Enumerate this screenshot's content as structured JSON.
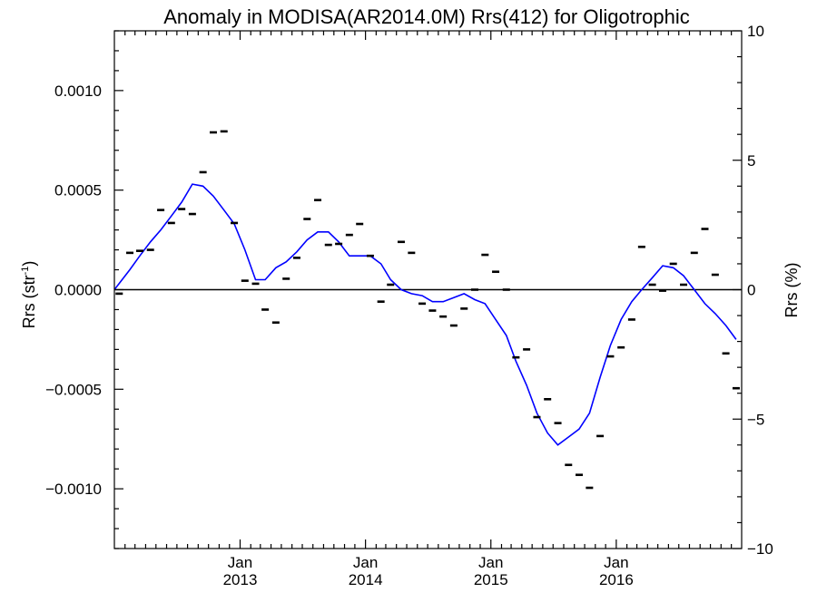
{
  "chart_data": {
    "type": "line",
    "title": "Anomaly in MODISA(AR2014.0M) Rrs(412) for Oligotrophic",
    "ylabel_left": "Rrs (str",
    "ylabel_left_sup": "-1",
    "ylabel_left_close": ")",
    "ylabel_right": "Rrs (%)",
    "xlim": [
      "2012-01-01",
      "2016-12-31"
    ],
    "ylim_left": [
      -0.0013,
      0.0013
    ],
    "ylim_right": [
      -10,
      10
    ],
    "x_ticks": [
      {
        "date": "2013-01-01",
        "label": "Jan",
        "year": "2013"
      },
      {
        "date": "2014-01-01",
        "label": "Jan",
        "year": "2014"
      },
      {
        "date": "2015-01-01",
        "label": "Jan",
        "year": "2015"
      },
      {
        "date": "2016-01-01",
        "label": "Jan",
        "year": "2016"
      }
    ],
    "y_ticks_left": [
      {
        "value": 0.001,
        "label": "0.0010"
      },
      {
        "value": 0.0005,
        "label": "0.0005"
      },
      {
        "value": 0.0,
        "label": "0.0000"
      },
      {
        "value": -0.0005,
        "label": "−0.0005"
      },
      {
        "value": -0.001,
        "label": "−0.0010"
      }
    ],
    "y_ticks_right": [
      {
        "value": 10,
        "label": "10"
      },
      {
        "value": 5,
        "label": "5"
      },
      {
        "value": 0,
        "label": "0"
      },
      {
        "value": -5,
        "label": "−5"
      },
      {
        "value": -10,
        "label": "−10"
      }
    ],
    "zero_line": true,
    "colors": {
      "line": "#0000ff",
      "markers": "#000000",
      "axes": "#000000"
    },
    "series": [
      {
        "kind": "markers",
        "x": [
          "2012-01",
          "2012-02",
          "2012-03",
          "2012-04",
          "2012-05",
          "2012-06",
          "2012-07",
          "2012-08",
          "2012-09",
          "2012-10",
          "2012-11",
          "2012-12",
          "2013-01",
          "2013-02",
          "2013-03",
          "2013-04",
          "2013-05",
          "2013-06",
          "2013-07",
          "2013-08",
          "2013-09",
          "2013-10",
          "2013-11",
          "2013-12",
          "2014-01",
          "2014-02",
          "2014-03",
          "2014-04",
          "2014-05",
          "2014-06",
          "2014-07",
          "2014-08",
          "2014-09",
          "2014-10",
          "2014-11",
          "2014-12",
          "2015-01",
          "2015-02",
          "2015-03",
          "2015-04",
          "2015-05",
          "2015-06",
          "2015-07",
          "2015-08",
          "2015-09",
          "2015-10",
          "2015-11",
          "2015-12",
          "2016-01",
          "2016-02",
          "2016-03",
          "2016-04",
          "2016-05",
          "2016-06",
          "2016-07",
          "2016-08",
          "2016-09",
          "2016-10",
          "2016-11",
          "2016-12"
        ],
        "y": [
          -2e-05,
          0.000185,
          0.000195,
          0.0002,
          0.0004,
          0.000335,
          0.000405,
          0.00038,
          0.00059,
          0.00079,
          0.000795,
          0.000335,
          4.5e-05,
          3e-05,
          -0.0001,
          -0.000165,
          5.5e-05,
          0.00016,
          0.000355,
          0.00045,
          0.000225,
          0.00023,
          0.000275,
          0.00033,
          0.00017,
          -6e-05,
          2.5e-05,
          0.00024,
          0.000185,
          -7e-05,
          -0.000105,
          -0.000135,
          -0.00018,
          -9.5e-05,
          0.0,
          0.000175,
          9e-05,
          0.0,
          -0.00034,
          -0.0003,
          -0.00064,
          -0.00055,
          -0.00067,
          -0.00088,
          -0.00093,
          -0.000995,
          -0.000735,
          -0.000335,
          -0.00029,
          -0.00015,
          0.000215,
          2.5e-05,
          -5e-06,
          0.00013,
          2.5e-05,
          0.000185,
          0.000305,
          7.5e-05,
          -0.00032,
          -0.000495
        ]
      },
      {
        "kind": "line",
        "x": [
          "2012-01",
          "2012-02",
          "2012-03",
          "2012-04",
          "2012-05",
          "2012-06",
          "2012-07",
          "2012-08",
          "2012-09",
          "2012-10",
          "2012-11",
          "2012-12",
          "2013-01",
          "2013-02",
          "2013-03",
          "2013-04",
          "2013-05",
          "2013-06",
          "2013-07",
          "2013-08",
          "2013-09",
          "2013-10",
          "2013-11",
          "2013-12",
          "2014-01",
          "2014-02",
          "2014-03",
          "2014-04",
          "2014-05",
          "2014-06",
          "2014-07",
          "2014-08",
          "2014-09",
          "2014-10",
          "2014-11",
          "2014-12",
          "2015-01",
          "2015-02",
          "2015-03",
          "2015-04",
          "2015-05",
          "2015-06",
          "2015-07",
          "2015-08",
          "2015-09",
          "2015-10",
          "2015-11",
          "2015-12",
          "2016-01",
          "2016-02",
          "2016-03",
          "2016-04",
          "2016-05",
          "2016-06",
          "2016-07",
          "2016-08",
          "2016-09",
          "2016-10",
          "2016-11",
          "2016-12"
        ],
        "y": [
          0.0,
          0.0001,
          0.00017,
          0.00024,
          0.0003,
          0.00037,
          0.00044,
          0.00053,
          0.00052,
          0.00047,
          0.0004,
          0.00033,
          0.0002,
          5e-05,
          5e-05,
          0.00011,
          0.00014,
          0.00019,
          0.00025,
          0.00029,
          0.00029,
          0.00024,
          0.00017,
          0.00017,
          0.00017,
          0.00013,
          5e-05,
          0.0,
          -2e-05,
          -3e-05,
          -6e-05,
          -6e-05,
          -4e-05,
          -2e-05,
          -5e-05,
          -7e-05,
          -0.00015,
          -0.00023,
          -0.00036,
          -0.00048,
          -0.00062,
          -0.00072,
          -0.00078,
          -0.00074,
          -0.0007,
          -0.00062,
          -0.00044,
          -0.00028,
          -0.00015,
          -6e-05,
          0.0,
          6e-05,
          0.00012,
          0.00011,
          7e-05,
          0.0,
          -7e-05,
          -0.00012,
          -0.00018,
          -0.00025
        ]
      }
    ]
  }
}
